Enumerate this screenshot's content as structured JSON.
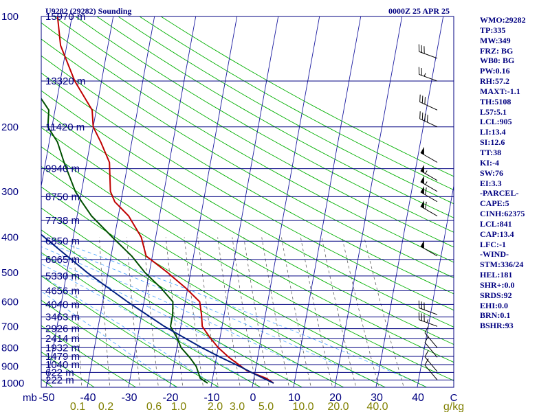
{
  "header": {
    "station_title": "U9282 (29282) Sounding",
    "valid_time": "0000Z 25 APR 25"
  },
  "colors": {
    "isobar": "#000080",
    "temperature": "#c00000",
    "dewpoint": "#005000",
    "parcel": "#002080",
    "isotherm": "#1a1aa0",
    "dry_adiabat": "#00b000",
    "moist_adiabat": "#55aaff",
    "mixing_ratio": "#606060",
    "label_text": "#000080",
    "mixing_label_text": "#808000",
    "wind_barb": "#000000"
  },
  "chart_data": {
    "type": "line",
    "title": "U9282 (29282) Sounding",
    "subtitle": "0000Z 25 APR 25",
    "y_axis_unit": "mb",
    "y_scale": "log",
    "ylim": [
      1000,
      100
    ],
    "xlim": [
      -50,
      50
    ],
    "pressure_ticks": [
      {
        "p": 1000,
        "label": "1000"
      },
      {
        "p": 900,
        "label": "900"
      },
      {
        "p": 800,
        "label": "800"
      },
      {
        "p": 700,
        "label": "700"
      },
      {
        "p": 600,
        "label": "600"
      },
      {
        "p": 500,
        "label": "500"
      },
      {
        "p": 400,
        "label": "400"
      },
      {
        "p": 300,
        "label": "300"
      },
      {
        "p": 200,
        "label": "200"
      },
      {
        "p": 100,
        "label": "100"
      }
    ],
    "height_labels": [
      {
        "p": 980,
        "label": "222 m"
      },
      {
        "p": 935,
        "label": "622 m"
      },
      {
        "p": 890,
        "label": "1040 m"
      },
      {
        "p": 845,
        "label": "1479 m"
      },
      {
        "p": 800,
        "label": "1932 m"
      },
      {
        "p": 755,
        "label": "2414 m"
      },
      {
        "p": 710,
        "label": "2926 m"
      },
      {
        "p": 660,
        "label": "3463 m"
      },
      {
        "p": 610,
        "label": "4040 m"
      },
      {
        "p": 560,
        "label": "4656 m"
      },
      {
        "p": 510,
        "label": "5330 m"
      },
      {
        "p": 460,
        "label": "6065 m"
      },
      {
        "p": 410,
        "label": "6850 m"
      },
      {
        "p": 360,
        "label": "7738 m"
      },
      {
        "p": 310,
        "label": "8750 m"
      },
      {
        "p": 260,
        "label": "9940 m"
      },
      {
        "p": 200,
        "label": "11420 m"
      },
      {
        "p": 150,
        "label": "13320 m"
      },
      {
        "p": 100,
        "label": "15970 m"
      }
    ],
    "temperature_ticks": [
      -50,
      -40,
      -30,
      -20,
      -10,
      0,
      10,
      20,
      30,
      40
    ],
    "temperature_unit": "C",
    "mixing_ratio_ticks": [
      "0.1",
      "0.2",
      "0.6",
      "1.0",
      "2.0",
      "3.0",
      "5.0",
      "10.0",
      "20.0",
      "40.0"
    ],
    "mixing_ratio_unit": "g/kg",
    "series": [
      {
        "name": "temperature",
        "color": "#c00000",
        "points": [
          {
            "p": 1000,
            "t": 5.0
          },
          {
            "p": 970,
            "t": 3.0
          },
          {
            "p": 925,
            "t": -2.0
          },
          {
            "p": 850,
            "t": -7.0
          },
          {
            "p": 800,
            "t": -10.0
          },
          {
            "p": 750,
            "t": -12.5
          },
          {
            "p": 700,
            "t": -14.8
          },
          {
            "p": 650,
            "t": -15.5
          },
          {
            "p": 600,
            "t": -16.5
          },
          {
            "p": 550,
            "t": -20.5
          },
          {
            "p": 500,
            "t": -25.5
          },
          {
            "p": 450,
            "t": -31.5
          },
          {
            "p": 400,
            "t": -33.5
          },
          {
            "p": 350,
            "t": -37.5
          },
          {
            "p": 320,
            "t": -41.5
          },
          {
            "p": 300,
            "t": -43.0
          },
          {
            "p": 250,
            "t": -44.5
          },
          {
            "p": 220,
            "t": -47.5
          },
          {
            "p": 200,
            "t": -50.0
          },
          {
            "p": 180,
            "t": -51.0
          },
          {
            "p": 150,
            "t": -56.5
          },
          {
            "p": 120,
            "t": -61.5
          },
          {
            "p": 100,
            "t": -63.5
          }
        ]
      },
      {
        "name": "dewpoint",
        "color": "#005000",
        "points": [
          {
            "p": 1000,
            "t": -11.0
          },
          {
            "p": 970,
            "t": -13.0
          },
          {
            "p": 900,
            "t": -14.5
          },
          {
            "p": 850,
            "t": -16.5
          },
          {
            "p": 800,
            "t": -19.0
          },
          {
            "p": 750,
            "t": -20.5
          },
          {
            "p": 700,
            "t": -22.5
          },
          {
            "p": 650,
            "t": -22.5
          },
          {
            "p": 600,
            "t": -23.0
          },
          {
            "p": 550,
            "t": -26.5
          },
          {
            "p": 500,
            "t": -31.0
          },
          {
            "p": 450,
            "t": -35.0
          },
          {
            "p": 400,
            "t": -40.5
          },
          {
            "p": 350,
            "t": -46.5
          },
          {
            "p": 320,
            "t": -49.5
          },
          {
            "p": 300,
            "t": -51.5
          },
          {
            "p": 250,
            "t": -55.5
          },
          {
            "p": 220,
            "t": -58.0
          },
          {
            "p": 200,
            "t": -61.0
          },
          {
            "p": 180,
            "t": -61.5
          },
          {
            "p": 150,
            "t": -67.5
          },
          {
            "p": 120,
            "t": -71.0
          },
          {
            "p": 100,
            "t": -74.5
          }
        ]
      },
      {
        "name": "parcel",
        "color": "#002080",
        "points": [
          {
            "p": 1000,
            "t": 5.0
          },
          {
            "p": 950,
            "t": 0.5
          },
          {
            "p": 905,
            "t": -3.5
          },
          {
            "p": 850,
            "t": -9.0
          },
          {
            "p": 800,
            "t": -14.0
          },
          {
            "p": 700,
            "t": -24.0
          },
          {
            "p": 600,
            "t": -34.0
          },
          {
            "p": 500,
            "t": -45.0
          },
          {
            "p": 400,
            "t": -57.0
          },
          {
            "p": 300,
            "t": -72.0
          },
          {
            "p": 200,
            "t": -91.0
          },
          {
            "p": 150,
            "t": -102.0
          },
          {
            "p": 100,
            "t": -117.0
          }
        ]
      }
    ],
    "wind_profile": [
      {
        "p": 980,
        "dir": 320,
        "kt": 10
      },
      {
        "p": 930,
        "dir": 320,
        "kt": 10
      },
      {
        "p": 850,
        "dir": 320,
        "kt": 10
      },
      {
        "p": 800,
        "dir": 320,
        "kt": 10
      },
      {
        "p": 700,
        "dir": 290,
        "kt": 35
      },
      {
        "p": 650,
        "dir": 290,
        "kt": 30
      },
      {
        "p": 450,
        "dir": 300,
        "kt": 50
      },
      {
        "p": 350,
        "dir": 300,
        "kt": 60
      },
      {
        "p": 320,
        "dir": 300,
        "kt": 60
      },
      {
        "p": 300,
        "dir": 300,
        "kt": 55
      },
      {
        "p": 280,
        "dir": 300,
        "kt": 55
      },
      {
        "p": 250,
        "dir": 300,
        "kt": 50
      },
      {
        "p": 200,
        "dir": 295,
        "kt": 40
      },
      {
        "p": 180,
        "dir": 295,
        "kt": 30
      },
      {
        "p": 150,
        "dir": 290,
        "kt": 25
      },
      {
        "p": 130,
        "dir": 290,
        "kt": 30
      }
    ]
  },
  "indices": [
    "WMO:29282",
    "TP:335",
    "MW:349",
    "FRZ: BG",
    "WB0: BG",
    "PW:0.16",
    "RH:57.2",
    "MAXT:-1.1",
    "TH:5108",
    "L57:5.1",
    "LCL:905",
    "LI:13.4",
    "SI:12.6",
    "TT:38",
    "KI:-4",
    "SW:76",
    "EI:3.3",
    "-PARCEL-",
    "CAPE:5",
    "CINH:62375",
    "LCL:841",
    "CAP:13.4",
    "LFC:-1",
    "-WIND-",
    "STM:336/24",
    "HEL:181",
    "SHR+:0.0",
    "SRDS:92",
    "EHI:0.0",
    "BRN:0.1",
    "BSHR:93"
  ]
}
